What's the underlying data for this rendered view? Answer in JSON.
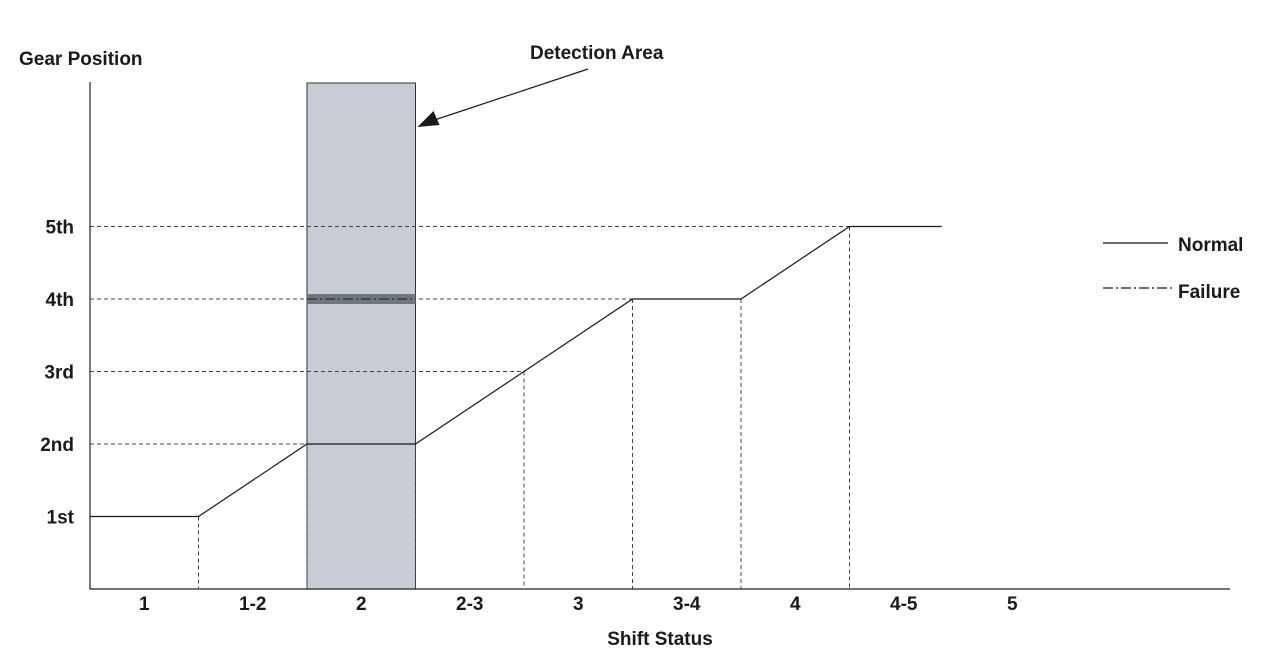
{
  "chart_data": {
    "type": "line",
    "title": "",
    "xlabel": "Shift Status",
    "ylabel": "Gear Position",
    "categories": [
      "1",
      "1-2",
      "2",
      "2-3",
      "3",
      "3-4",
      "4",
      "4-5",
      "5"
    ],
    "y_ticks": [
      "1st",
      "2nd",
      "3rd",
      "4th",
      "5th"
    ],
    "series": [
      {
        "name": "Normal",
        "style": "solid",
        "values": [
          1,
          1,
          2,
          2,
          2,
          3,
          3,
          4,
          4,
          5,
          5
        ],
        "x": [
          0,
          1,
          2,
          2,
          3,
          4,
          4,
          5,
          6,
          7,
          7.85
        ]
      },
      {
        "name": "Failure",
        "style": "dash-dot",
        "values": [
          4,
          4
        ],
        "x": [
          2,
          3
        ]
      }
    ],
    "highlight_region": {
      "label": "Detection Area",
      "x_range": [
        2,
        3
      ],
      "color": "#c8cdd5"
    },
    "legend": {
      "position": "right",
      "entries": [
        {
          "label": "Normal",
          "style": "solid"
        },
        {
          "label": "Failure",
          "style": "dash-dot"
        }
      ]
    },
    "ylim": [
      0,
      7
    ],
    "grid": false
  }
}
